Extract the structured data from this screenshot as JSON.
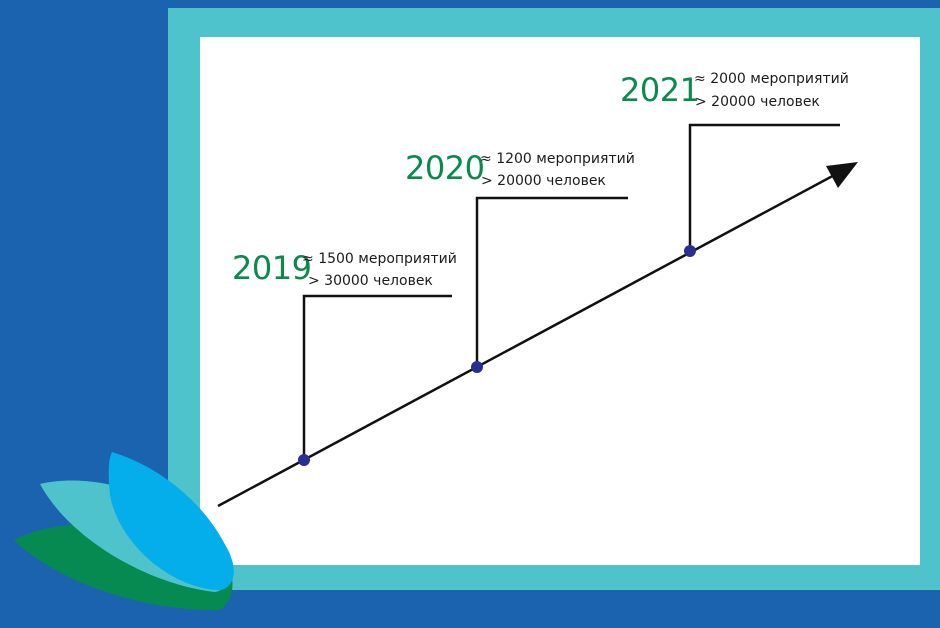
{
  "milestones": [
    {
      "year": "2019",
      "events_symbol": "≈",
      "events": "1500 мероприятий",
      "people": "> 30000 человек"
    },
    {
      "year": "2020",
      "events_symbol": "≈",
      "events": "1200 мероприятий",
      "people": "> 20000 человек"
    },
    {
      "year": "2021",
      "events_symbol": "≈",
      "events": "2000 мероприятий",
      "people": "> 20000 человек"
    }
  ],
  "colors": {
    "background": "#1b63ae",
    "frame": "#4ec3cb",
    "panel": "#ffffff",
    "year_text": "#0b8a4f",
    "marker": "#2a2f8f",
    "leaf_blue": "#04aeea",
    "leaf_teal": "#4ec3cb",
    "leaf_green": "#068a52"
  }
}
